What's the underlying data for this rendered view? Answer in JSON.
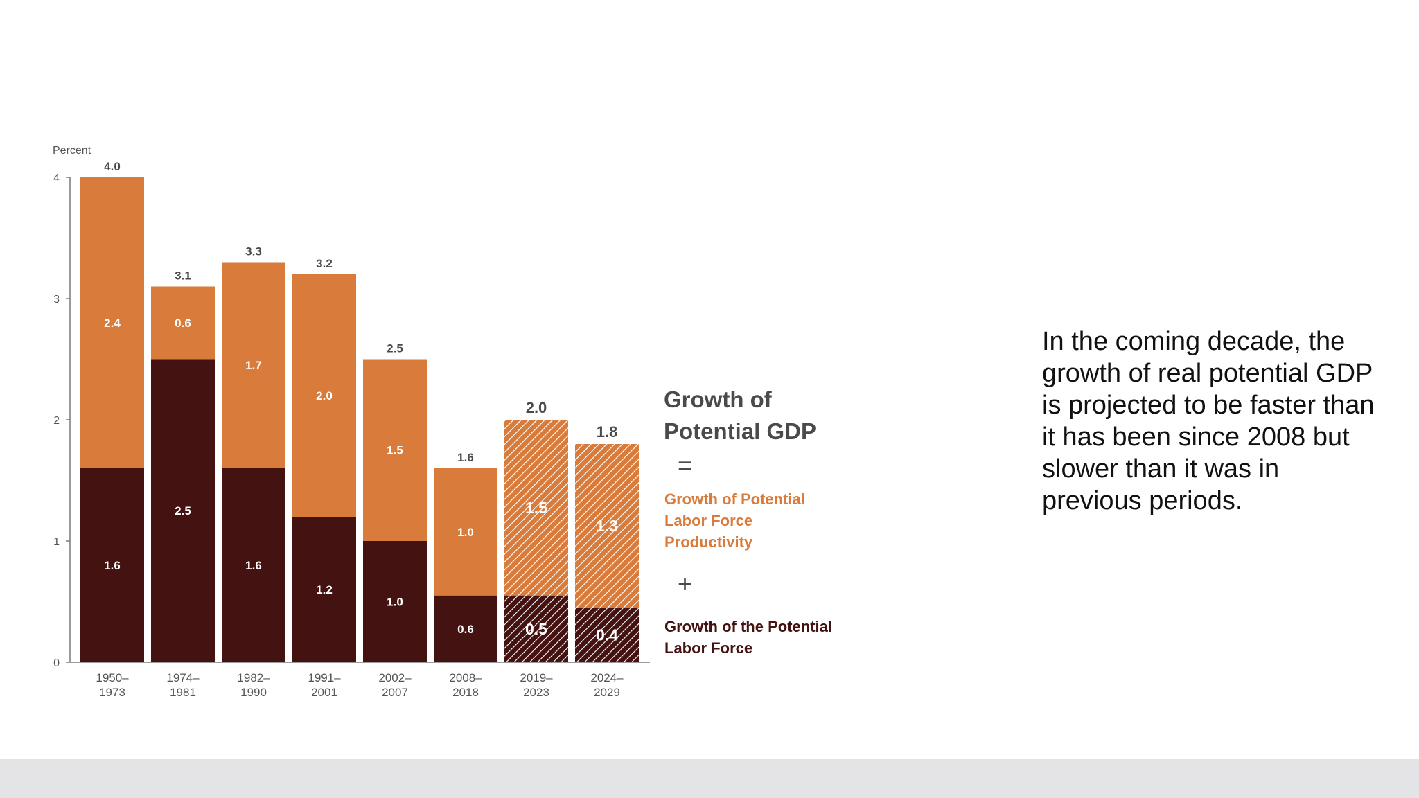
{
  "slide": {
    "caption": "In the coming decade, the growth of real potential GDP is projected to be faster than it has been since 2008 but slower than it was in previous periods."
  },
  "colors": {
    "productivity": "#d97b3a",
    "labor_force": "#451212",
    "equation_text": "#4a4a4a",
    "axis": "#555555"
  },
  "legend": {
    "title_line1": "Growth of",
    "title_line2": "Potential GDP",
    "equals": "=",
    "productivity_line1": "Growth of Potential",
    "productivity_line2": "Labor Force",
    "productivity_line3": "Productivity",
    "plus": "+",
    "labor_line1": "Growth of the Potential",
    "labor_line2": "Labor Force"
  },
  "chart_data": {
    "type": "bar",
    "stacked": true,
    "ylabel": "Percent",
    "ylim": [
      0,
      4
    ],
    "yticks": [
      "0",
      "1",
      "2",
      "3",
      "4"
    ],
    "categories": [
      [
        "1950–",
        "1973"
      ],
      [
        "1974–",
        "1981"
      ],
      [
        "1982–",
        "1990"
      ],
      [
        "1991–",
        "2001"
      ],
      [
        "2002–",
        "2007"
      ],
      [
        "2008–",
        "2018"
      ],
      [
        "2019–",
        "2023"
      ],
      [
        "2024–",
        "2029"
      ]
    ],
    "projected": [
      false,
      false,
      false,
      false,
      false,
      false,
      true,
      true
    ],
    "totals": [
      {
        "value": 4.0,
        "label": "4.0"
      },
      {
        "value": 3.1,
        "label": "3.1"
      },
      {
        "value": 3.3,
        "label": "3.3"
      },
      {
        "value": 3.2,
        "label": "3.2"
      },
      {
        "value": 2.5,
        "label": "2.5"
      },
      {
        "value": 1.6,
        "label": "1.6"
      },
      {
        "value": 2.0,
        "label": "2.0"
      },
      {
        "value": 1.8,
        "label": "1.8"
      }
    ],
    "series": [
      {
        "key": "labor_force",
        "values": [
          1.6,
          2.5,
          1.6,
          1.2,
          1.0,
          0.55,
          0.55,
          0.45
        ],
        "labels": [
          "1.6",
          "2.5",
          "1.6",
          "1.2",
          "1.0",
          "0.6",
          "0.5",
          "0.4"
        ]
      },
      {
        "key": "productivity",
        "values": [
          2.4,
          0.6,
          1.7,
          2.0,
          1.5,
          1.05,
          1.5,
          1.35
        ],
        "labels": [
          "2.4",
          "0.6",
          "1.7",
          "2.0",
          "1.5",
          "1.0",
          "1.5",
          "1.3"
        ]
      }
    ]
  }
}
